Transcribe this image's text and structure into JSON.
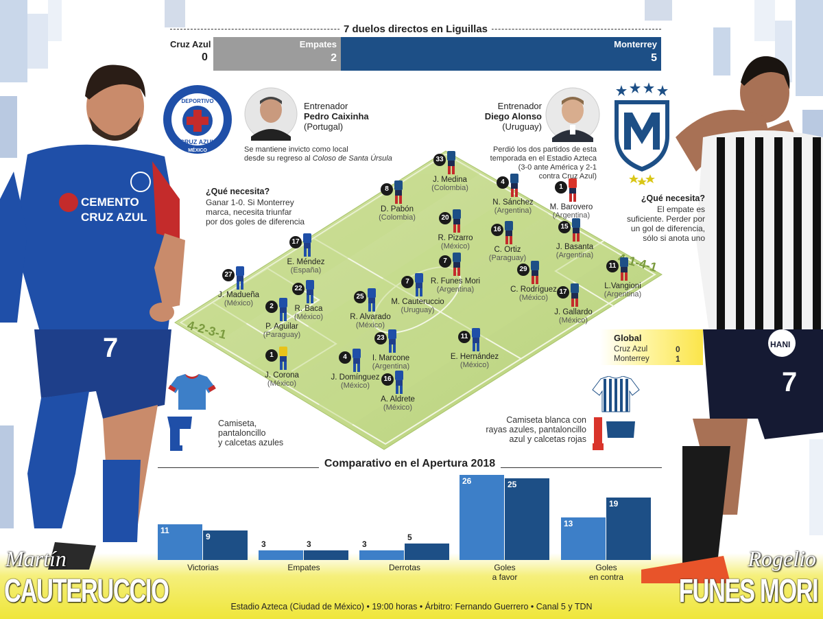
{
  "duel": {
    "title": "7 duelos directos en Liguillas",
    "cruz_azul_label": "Cruz Azul",
    "cruz_azul_value": "0",
    "empates_label": "Empates",
    "empates_value": "2",
    "monterrey_label": "Monterrey",
    "monterrey_value": "5"
  },
  "cruz_azul": {
    "logo_text_top": "DEPORTIVO",
    "logo_text_mid": "CRUZ AZUL",
    "logo_text_bottom": "MÉXICO",
    "coach_role": "Entrenador",
    "coach_name": "Pedro Caixinha",
    "coach_country": "(Portugal)",
    "coach_note_1": "Se mantiene invicto como local",
    "coach_note_2": "desde su regreso al",
    "coach_note_italic": "Coloso de Santa Úrsula",
    "need_title": "¿Qué necesita?",
    "need_1": "Ganar 1-0. Si Monterrey",
    "need_2": "marca, necesita triunfar",
    "need_3": "por dos goles de diferencia",
    "formation": "4-2-3-1",
    "kit_1": "Camiseta,",
    "kit_2": "pantaloncillo",
    "kit_3": "y calcetas azules",
    "shirt_sponsor_1": "CEMENTO",
    "shirt_sponsor_2": "CRUZ AZUL",
    "accent": "#1f4fa8"
  },
  "monterrey": {
    "coach_role": "Entrenador",
    "coach_name": "Diego Alonso",
    "coach_country": "(Uruguay)",
    "coach_note_1": "Perdió los dos partidos de esta",
    "coach_note_2": "temporada en el Estadio Azteca",
    "coach_note_3": "(3-0 ante América y 2-1",
    "coach_note_4": "contra Cruz Azul)",
    "need_title": "¿Qué necesita?",
    "need_1": "El empate es",
    "need_2": "suficiente. Perder por",
    "need_3": "un gol de diferencia,",
    "need_4": "sólo si anota uno",
    "formation": "4-1-4-1",
    "kit_1": "Camiseta blanca con",
    "kit_2": "rayas azules, pantaloncillo",
    "kit_3": "azul y calcetas rojas",
    "shirt_sponsor": "HANI",
    "accent": "#1d4f86"
  },
  "players": [
    {
      "num": "1",
      "name": "J. Corona",
      "country": "(México)",
      "team": "ca",
      "gk": true
    },
    {
      "num": "27",
      "name": "J. Madueña",
      "country": "(México)",
      "team": "ca"
    },
    {
      "num": "2",
      "name": "P. Aguilar",
      "country": "(Paraguay)",
      "team": "ca"
    },
    {
      "num": "4",
      "name": "J. Domínguez",
      "country": "(México)",
      "team": "ca"
    },
    {
      "num": "16",
      "name": "A. Aldrete",
      "country": "(México)",
      "team": "ca"
    },
    {
      "num": "22",
      "name": "R. Baca",
      "country": "(México)",
      "team": "ca"
    },
    {
      "num": "23",
      "name": "I. Marcone",
      "country": "(Argentina)",
      "team": "ca"
    },
    {
      "num": "17",
      "name": "E. Méndez",
      "country": "(España)",
      "team": "ca"
    },
    {
      "num": "25",
      "name": "R. Alvarado",
      "country": "(México)",
      "team": "ca"
    },
    {
      "num": "11",
      "name": "E. Hernández",
      "country": "(México)",
      "team": "ca"
    },
    {
      "num": "7",
      "name": "M. Cauteruccio",
      "country": "(Uruguay)",
      "team": "ca"
    },
    {
      "num": "1",
      "name": "M. Barovero",
      "country": "(Argentina)",
      "team": "mty",
      "gk": true
    },
    {
      "num": "33",
      "name": "J. Medina",
      "country": "(Colombia)",
      "team": "mty"
    },
    {
      "num": "4",
      "name": "N. Sánchez",
      "country": "(Argentina)",
      "team": "mty"
    },
    {
      "num": "15",
      "name": "J. Basanta",
      "country": "(Argentina)",
      "team": "mty"
    },
    {
      "num": "11",
      "name": "L.Vangioni",
      "country": "(Argentina)",
      "team": "mty"
    },
    {
      "num": "16",
      "name": "C. Ortiz",
      "country": "(Paraguay)",
      "team": "mty"
    },
    {
      "num": "8",
      "name": "D. Pabón",
      "country": "(Colombia)",
      "team": "mty"
    },
    {
      "num": "20",
      "name": "R. Pizarro",
      "country": "(México)",
      "team": "mty"
    },
    {
      "num": "29",
      "name": "C. Rodríguez",
      "country": "(México)",
      "team": "mty"
    },
    {
      "num": "17",
      "name": "J. Gallardo",
      "country": "(México)",
      "team": "mty"
    },
    {
      "num": "7",
      "name": "R. Funes Mori",
      "country": "(Argentina)",
      "team": "mty"
    }
  ],
  "global": {
    "title": "Global",
    "ca_label": "Cruz Azul",
    "ca_value": "0",
    "mty_label": "Monterrey",
    "mty_value": "1"
  },
  "comparison": {
    "title": "Comparativo en el Apertura 2018",
    "stats": [
      {
        "cat_1": "Victorias",
        "cat_2": "",
        "ca": 11,
        "mty": 9
      },
      {
        "cat_1": "Empates",
        "cat_2": "",
        "ca": 3,
        "mty": 3
      },
      {
        "cat_1": "Derrotas",
        "cat_2": "",
        "ca": 3,
        "mty": 5
      },
      {
        "cat_1": "Goles",
        "cat_2": "a favor",
        "ca": 26,
        "mty": 25
      },
      {
        "cat_1": "Goles",
        "cat_2": "en contra",
        "ca": 13,
        "mty": 19
      }
    ],
    "ca_color": "#3d7fc8",
    "mty_color": "#1d4f86"
  },
  "left_player": {
    "first": "Martín",
    "last": "CAUTERUCCIO"
  },
  "right_player": {
    "first": "Rogelio",
    "last": "FUNES MORI"
  },
  "footer": "Estadio Azteca (Ciudad de México) • 19:00 horas • Árbitro: Fernando Guerrero • Canal 5 y TDN"
}
